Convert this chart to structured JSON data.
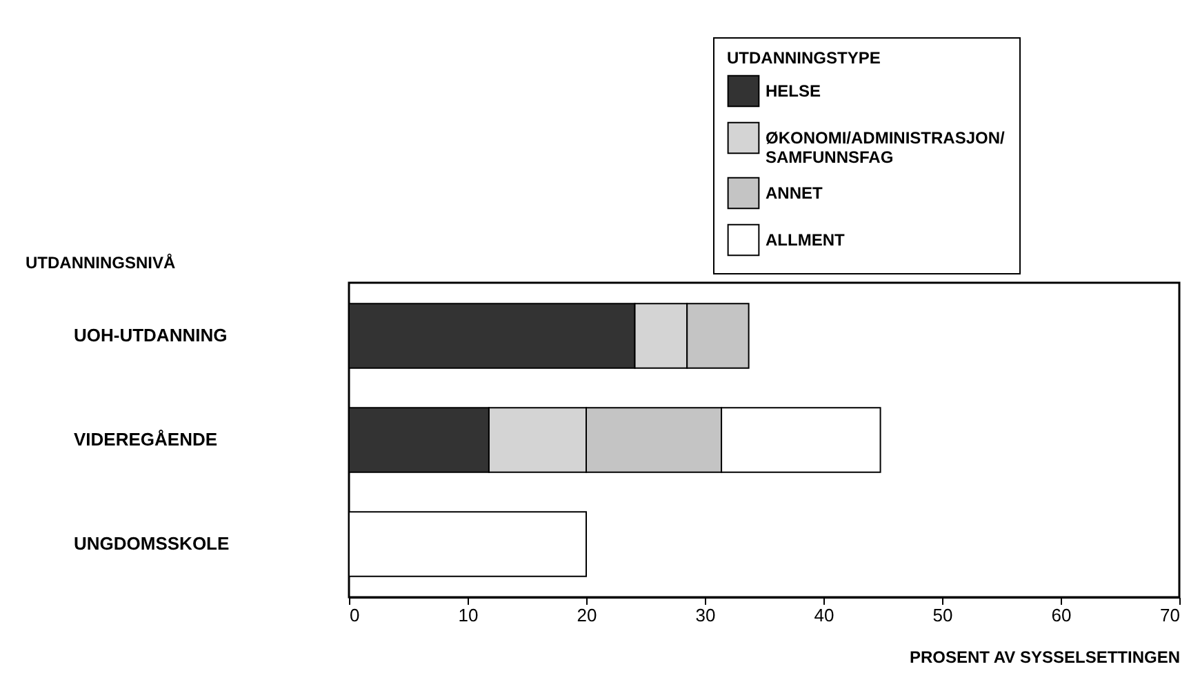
{
  "chart_data": {
    "type": "bar",
    "orientation": "horizontal",
    "stacked": true,
    "categories": [
      "UOH-UTDANNING",
      "VIDEREGÅENDE",
      "UNGDOMSSKOLE"
    ],
    "series": [
      {
        "name": "HELSE",
        "color": "#333333",
        "values": [
          24.1,
          11.8,
          null
        ]
      },
      {
        "name": "ØKONOMI/ADMINISTRASJON/ SAMFUNNSFAG",
        "color": "#d4d4d4",
        "values": [
          4.4,
          8.2,
          null
        ]
      },
      {
        "name": "ANNET",
        "color": "#c4c4c4",
        "values": [
          5.2,
          11.4,
          null
        ]
      },
      {
        "name": "ALLMENT",
        "color": "#ffffff",
        "values": [
          null,
          13.4,
          20.0
        ]
      }
    ],
    "xlim": [
      0,
      70
    ],
    "xticks": [
      0,
      10,
      20,
      30,
      40,
      50,
      60,
      70
    ],
    "xlabel": "PROSENT AV SYSSELSETTINGEN",
    "ylabel": "UTDANNINGSNIVÅ",
    "legend_title": "UTDANNINGSTYPE",
    "legend": "top right",
    "grid": false
  }
}
